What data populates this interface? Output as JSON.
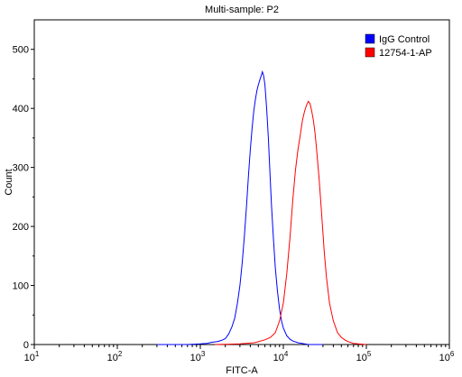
{
  "chart_data": {
    "type": "line",
    "title": "Multi-sample: P2",
    "xlabel": "FITC-A",
    "ylabel": "Count",
    "x_scale": "log",
    "xlim": [
      10,
      1000000
    ],
    "ylim": [
      0,
      550
    ],
    "x_ticks": [
      {
        "label_base": "10",
        "label_exp": "1"
      },
      {
        "label_base": "10",
        "label_exp": "2"
      },
      {
        "label_base": "10",
        "label_exp": "3"
      },
      {
        "label_base": "10",
        "label_exp": "4"
      },
      {
        "label_base": "10",
        "label_exp": "5"
      },
      {
        "label_base": "10",
        "label_exp": "6"
      }
    ],
    "y_ticks": [
      0,
      100,
      200,
      300,
      400,
      500
    ],
    "legend_position": "top-right",
    "series": [
      {
        "name": "IgG Control",
        "color": "#0000ff",
        "points": [
          [
            300,
            0
          ],
          [
            700,
            0
          ],
          [
            1000,
            1
          ],
          [
            1200,
            2
          ],
          [
            1400,
            4
          ],
          [
            1600,
            5
          ],
          [
            1800,
            7
          ],
          [
            2000,
            10
          ],
          [
            2200,
            18
          ],
          [
            2400,
            30
          ],
          [
            2600,
            45
          ],
          [
            2800,
            70
          ],
          [
            3000,
            100
          ],
          [
            3200,
            140
          ],
          [
            3400,
            185
          ],
          [
            3600,
            235
          ],
          [
            3800,
            285
          ],
          [
            4000,
            330
          ],
          [
            4200,
            365
          ],
          [
            4400,
            395
          ],
          [
            4600,
            415
          ],
          [
            4800,
            430
          ],
          [
            5000,
            440
          ],
          [
            5200,
            448
          ],
          [
            5400,
            455
          ],
          [
            5600,
            462
          ],
          [
            5800,
            455
          ],
          [
            6000,
            440
          ],
          [
            6300,
            400
          ],
          [
            6600,
            350
          ],
          [
            6900,
            290
          ],
          [
            7200,
            235
          ],
          [
            7600,
            180
          ],
          [
            8000,
            130
          ],
          [
            8500,
            90
          ],
          [
            9000,
            60
          ],
          [
            9500,
            40
          ],
          [
            10000,
            28
          ],
          [
            11000,
            15
          ],
          [
            12000,
            9
          ],
          [
            13000,
            6
          ],
          [
            15000,
            3
          ],
          [
            18000,
            1
          ],
          [
            20000,
            0
          ],
          [
            30000,
            0
          ]
        ]
      },
      {
        "name": "12754-1-AP",
        "color": "#ff0000",
        "points": [
          [
            1500,
            0
          ],
          [
            3000,
            1
          ],
          [
            4500,
            3
          ],
          [
            6000,
            8
          ],
          [
            7000,
            12
          ],
          [
            8000,
            20
          ],
          [
            9000,
            40
          ],
          [
            10000,
            70
          ],
          [
            11000,
            120
          ],
          [
            12000,
            180
          ],
          [
            13000,
            245
          ],
          [
            14000,
            295
          ],
          [
            15000,
            330
          ],
          [
            16000,
            355
          ],
          [
            17000,
            380
          ],
          [
            18000,
            395
          ],
          [
            19000,
            405
          ],
          [
            20000,
            412
          ],
          [
            21000,
            408
          ],
          [
            22000,
            395
          ],
          [
            23000,
            380
          ],
          [
            24000,
            360
          ],
          [
            25000,
            335
          ],
          [
            27000,
            280
          ],
          [
            29000,
            220
          ],
          [
            31000,
            160
          ],
          [
            33000,
            115
          ],
          [
            36000,
            70
          ],
          [
            40000,
            40
          ],
          [
            45000,
            20
          ],
          [
            50000,
            12
          ],
          [
            55000,
            8
          ],
          [
            60000,
            5
          ],
          [
            70000,
            2
          ],
          [
            80000,
            1
          ],
          [
            100000,
            0
          ]
        ]
      }
    ]
  }
}
